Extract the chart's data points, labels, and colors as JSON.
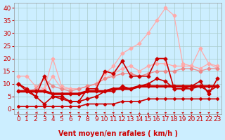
{
  "xlabel": "Vent moyen/en rafales ( km/h )",
  "background_color": "#cceeff",
  "grid_color": "#aacccc",
  "x_ticks": [
    0,
    1,
    2,
    3,
    4,
    5,
    6,
    7,
    8,
    9,
    10,
    11,
    12,
    13,
    14,
    15,
    16,
    17,
    18,
    19,
    20,
    21,
    22,
    23
  ],
  "y_ticks": [
    0,
    5,
    10,
    15,
    20,
    25,
    30,
    35,
    40
  ],
  "ylim": [
    -2,
    42
  ],
  "xlim": [
    -0.5,
    23.5
  ],
  "series": [
    {
      "x": [
        0,
        1,
        2,
        3,
        4,
        5,
        6,
        7,
        8,
        9,
        10,
        11,
        12,
        13,
        14,
        15,
        16,
        17,
        18,
        19,
        20,
        21,
        22,
        23
      ],
      "y": [
        13,
        13,
        9,
        8,
        20,
        9,
        8,
        8,
        9,
        10,
        14,
        17,
        22,
        24,
        26,
        30,
        35,
        40,
        37,
        18,
        17,
        24,
        18,
        16
      ],
      "color": "#ffaaaa",
      "linewidth": 0.9,
      "marker": "D",
      "markersize": 2.5,
      "zorder": 2
    },
    {
      "x": [
        0,
        1,
        2,
        3,
        4,
        5,
        6,
        7,
        8,
        9,
        10,
        11,
        12,
        13,
        14,
        15,
        16,
        17,
        18,
        19,
        20,
        21,
        22,
        23
      ],
      "y": [
        10,
        8,
        7,
        8,
        13,
        8,
        8,
        8,
        9,
        10,
        12,
        14,
        16,
        17,
        15,
        17,
        18,
        18,
        17,
        17,
        17,
        16,
        18,
        17
      ],
      "color": "#ffaaaa",
      "linewidth": 0.9,
      "marker": "D",
      "markersize": 2.5,
      "zorder": 2
    },
    {
      "x": [
        0,
        1,
        2,
        3,
        4,
        5,
        6,
        7,
        8,
        9,
        10,
        11,
        12,
        13,
        14,
        15,
        16,
        17,
        18,
        19,
        20,
        21,
        22,
        23
      ],
      "y": [
        10,
        7,
        8,
        12,
        9,
        8,
        7,
        8,
        9,
        10,
        12,
        13,
        14,
        14,
        13,
        14,
        15,
        15,
        15,
        16,
        16,
        15,
        16,
        16
      ],
      "color": "#ee8888",
      "linewidth": 0.9,
      "marker": "D",
      "markersize": 2.5,
      "zorder": 2
    },
    {
      "x": [
        0,
        1,
        2,
        3,
        4,
        5,
        6,
        7,
        8,
        9,
        10,
        11,
        12,
        13,
        14,
        15,
        16,
        17,
        18,
        19,
        20,
        21,
        22,
        23
      ],
      "y": [
        10,
        8,
        5,
        13,
        5,
        5,
        3,
        3,
        8,
        8,
        15,
        14,
        19,
        13,
        13,
        13,
        20,
        20,
        8,
        8,
        9,
        11,
        6,
        12
      ],
      "color": "#cc0000",
      "linewidth": 1.2,
      "marker": "D",
      "markersize": 2.5,
      "zorder": 3
    },
    {
      "x": [
        0,
        1,
        2,
        3,
        4,
        5,
        6,
        7,
        8,
        9,
        10,
        11,
        12,
        13,
        14,
        15,
        16,
        17,
        18,
        19,
        20,
        21,
        22,
        23
      ],
      "y": [
        10,
        7,
        5,
        2,
        5,
        4,
        3,
        3,
        4,
        5,
        7,
        7,
        9,
        8,
        9,
        10,
        12,
        11,
        8,
        8,
        8,
        9,
        7,
        9
      ],
      "color": "#cc0000",
      "linewidth": 1.2,
      "marker": "D",
      "markersize": 2.5,
      "zorder": 3
    },
    {
      "x": [
        0,
        1,
        2,
        3,
        4,
        5,
        6,
        7,
        8,
        9,
        10,
        11,
        12,
        13,
        14,
        15,
        16,
        17,
        18,
        19,
        20,
        21,
        22,
        23
      ],
      "y": [
        7,
        7,
        7,
        7,
        6,
        6,
        6,
        6,
        7,
        7,
        7,
        8,
        8,
        8,
        9,
        9,
        9,
        9,
        9,
        9,
        9,
        9,
        9,
        9
      ],
      "color": "#cc0000",
      "linewidth": 2.5,
      "marker": "D",
      "markersize": 2.5,
      "zorder": 4
    },
    {
      "x": [
        0,
        1,
        2,
        3,
        4,
        5,
        6,
        7,
        8,
        9,
        10,
        11,
        12,
        13,
        14,
        15,
        16,
        17,
        18,
        19,
        20,
        21,
        22,
        23
      ],
      "y": [
        1,
        1,
        1,
        1,
        1,
        1,
        1,
        1,
        2,
        2,
        2,
        2,
        3,
        3,
        3,
        4,
        4,
        4,
        4,
        4,
        4,
        4,
        4,
        4
      ],
      "color": "#cc0000",
      "linewidth": 1.2,
      "marker": "D",
      "markersize": 2,
      "zorder": 3
    }
  ],
  "arrow_directions": [
    225,
    225,
    270,
    270,
    315,
    315,
    315,
    315,
    315,
    315,
    315,
    315,
    315,
    315,
    0,
    0,
    45,
    45,
    45,
    45,
    45,
    45,
    45,
    45
  ],
  "label_fontsize": 7,
  "tick_fontsize": 6.5
}
